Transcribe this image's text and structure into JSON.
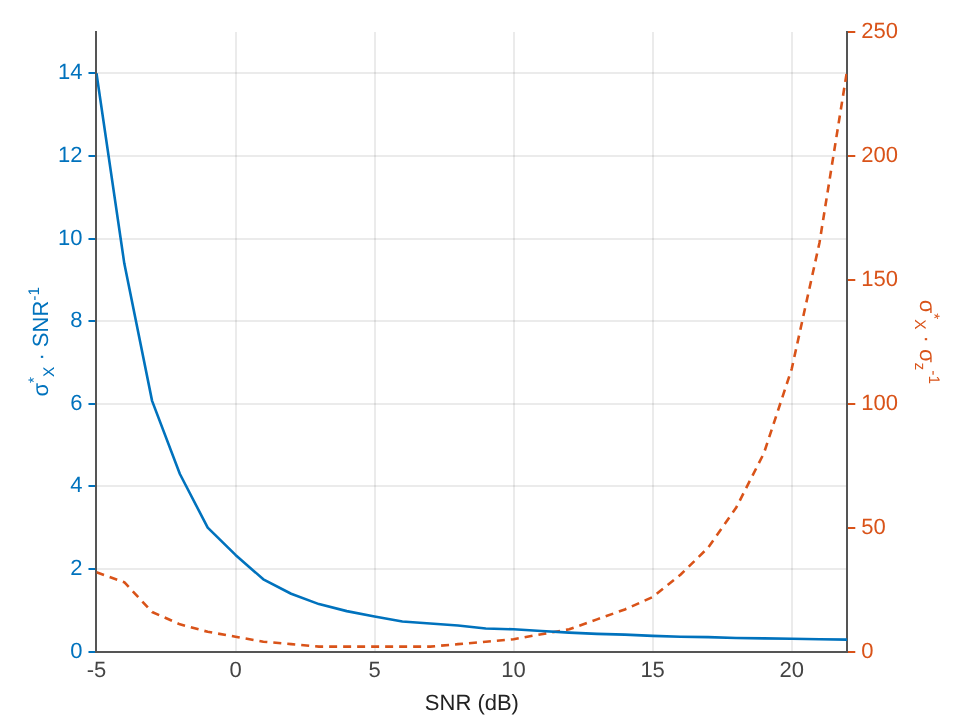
{
  "chart_data": {
    "type": "line",
    "xlabel": "SNR (dB)",
    "ylabel": "σ$^{*}$$_{X}$ · SNR$^{-1}$",
    "y2label": "σ$^{*}$$_{X}$ · σ$_{z}$$^{-1}$",
    "x": [
      -5,
      -4,
      -3,
      -2,
      -1,
      0,
      1,
      2,
      3,
      4,
      5,
      6,
      7,
      8,
      9,
      10,
      11,
      12,
      13,
      14,
      15,
      16,
      17,
      18,
      19,
      20,
      21,
      22
    ],
    "series": [
      {
        "color": "#0072bd",
        "line_style": "solid",
        "values": [
          14,
          9.4,
          6.07,
          4.3,
          3.0,
          2.34,
          1.75,
          1.4,
          1.15,
          0.98,
          0.85,
          0.73,
          0.68,
          0.63,
          0.56,
          0.54,
          0.5,
          0.46,
          0.43,
          0.41,
          0.38,
          0.36,
          0.35,
          0.33,
          0.32,
          0.31,
          0.3,
          0.29
        ]
      },
      {
        "color": "#d95319",
        "line_style": "dashed",
        "axis": "y2",
        "values": [
          32,
          28,
          16,
          11,
          8,
          6,
          4,
          3,
          2,
          2,
          2,
          2,
          2,
          3,
          4,
          5,
          7,
          9,
          13,
          17,
          22,
          31,
          42,
          58,
          80,
          114,
          165,
          235
        ]
      }
    ],
    "xlim": [
      -5,
      22
    ],
    "xticks": [
      -5,
      0,
      5,
      10,
      15,
      20
    ],
    "ylim": [
      0,
      15
    ],
    "yticks": [
      0,
      2,
      4,
      6,
      8,
      10,
      12,
      14
    ],
    "y2lim": [
      0,
      250
    ],
    "y2ticks": [
      0,
      50,
      100,
      150,
      200,
      250
    ],
    "grid": true,
    "legend": false,
    "marker": "none"
  }
}
